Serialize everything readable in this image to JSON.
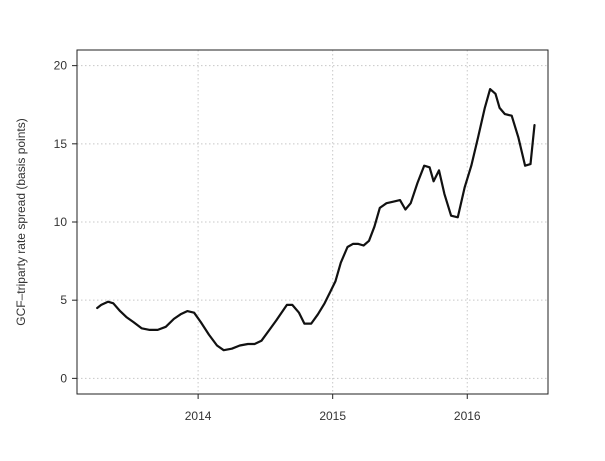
{
  "chart_data": {
    "type": "line",
    "title": "",
    "xlabel": "",
    "ylabel": "GCF–triparty rate spread (basis points)",
    "xlim": [
      2013.1,
      2016.6
    ],
    "ylim": [
      -1,
      21
    ],
    "xticks": [
      2014,
      2015,
      2016
    ],
    "xtick_labels": [
      "2014",
      "2015",
      "2016"
    ],
    "yticks": [
      0,
      5,
      10,
      15,
      20
    ],
    "ytick_labels": [
      "0",
      "5",
      "10",
      "15",
      "20"
    ],
    "grid": true,
    "legend": "none",
    "line_color": "#111111",
    "series": [
      {
        "x": [
          2013.25,
          2013.28,
          2013.33,
          2013.37,
          2013.42,
          2013.47,
          2013.52,
          2013.58,
          2013.64,
          2013.7,
          2013.76,
          2013.82,
          2013.87,
          2013.92,
          2013.97,
          2014.02,
          2014.08,
          2014.14,
          2014.19,
          2014.25,
          2014.31,
          2014.37,
          2014.42,
          2014.47,
          2014.53,
          2014.58,
          2014.62,
          2014.66,
          2014.7,
          2014.75,
          2014.79,
          2014.84,
          2014.89,
          2014.94,
          2014.98,
          2015.02,
          2015.06,
          2015.11,
          2015.15,
          2015.19,
          2015.23,
          2015.27,
          2015.31,
          2015.35,
          2015.4,
          2015.45,
          2015.5,
          2015.54,
          2015.58,
          2015.63,
          2015.68,
          2015.72,
          2015.75,
          2015.79,
          2015.83,
          2015.88,
          2015.93,
          2015.98,
          2016.03,
          2016.08,
          2016.13,
          2016.17,
          2016.21,
          2016.24,
          2016.28,
          2016.33,
          2016.38,
          2016.43,
          2016.47,
          2016.5
        ],
        "values": [
          4.5,
          4.7,
          4.9,
          4.8,
          4.3,
          3.9,
          3.6,
          3.2,
          3.1,
          3.1,
          3.3,
          3.8,
          4.1,
          4.3,
          4.2,
          3.6,
          2.8,
          2.1,
          1.8,
          1.9,
          2.1,
          2.2,
          2.2,
          2.4,
          3.1,
          3.7,
          4.2,
          4.7,
          4.7,
          4.2,
          3.5,
          3.5,
          4.1,
          4.8,
          5.5,
          6.2,
          7.4,
          8.4,
          8.6,
          8.6,
          8.5,
          8.8,
          9.7,
          10.9,
          11.2,
          11.3,
          11.4,
          10.8,
          11.2,
          12.5,
          13.6,
          13.5,
          12.6,
          13.3,
          11.8,
          10.4,
          10.3,
          12.2,
          13.6,
          15.4,
          17.3,
          18.5,
          18.2,
          17.3,
          16.9,
          16.8,
          15.4,
          13.6,
          13.7,
          16.2
        ]
      }
    ]
  }
}
